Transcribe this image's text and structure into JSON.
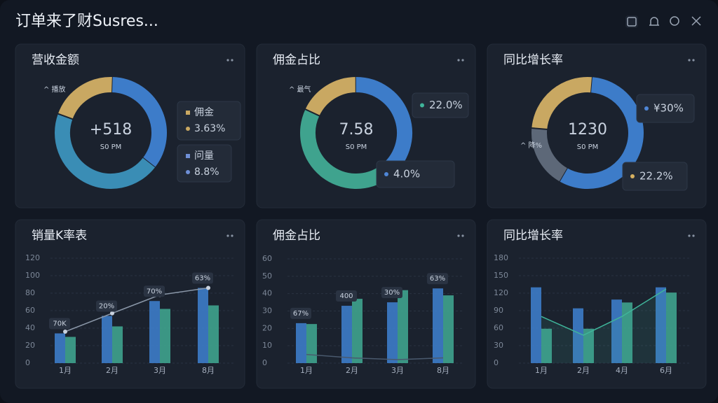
{
  "header": {
    "title": "订单来了财Susres..."
  },
  "donuts": [
    {
      "title": "营收金额",
      "center": "+518",
      "sub": "S0 PM",
      "label": "^ 播放",
      "segments": [
        {
          "color": "#c9a862",
          "value": 20
        },
        {
          "color": "#3d7cc9",
          "value": 35
        },
        {
          "color": "#3a8db5",
          "value": 45
        }
      ],
      "callouts": [
        {
          "name": "佣金",
          "text": "3.63%",
          "color": "#c9a862"
        },
        {
          "name": "问量",
          "text": "8.8%",
          "color": "#6f8fd6"
        }
      ]
    },
    {
      "title": "佣金占比",
      "center": "7.58",
      "sub": "S0 PM",
      "label": "^ 最气",
      "segments": [
        {
          "color": "#c9a862",
          "value": 18
        },
        {
          "color": "#3d7cc9",
          "value": 40
        },
        {
          "color": "#3fa38e",
          "value": 42
        }
      ],
      "callouts": [
        {
          "text": "22.0%",
          "color": "#3fb59a"
        },
        {
          "text": "4.0%",
          "color": "#4f86d6"
        }
      ]
    },
    {
      "title": "同比增长率",
      "center": "1230",
      "sub": "S0 PM",
      "label": "^ 降%",
      "segments": [
        {
          "color": "#c9a862",
          "value": 25
        },
        {
          "color": "#3d7cc9",
          "value": 57
        },
        {
          "color": "#5d6878",
          "value": 18
        }
      ],
      "callouts": [
        {
          "text": "¥30%",
          "color": "#4f86d6"
        },
        {
          "text": "22.2%",
          "color": "#d6b060"
        }
      ]
    }
  ],
  "bars": [
    {
      "title": "销量K率表",
      "categories": [
        "1月",
        "2月",
        "3月",
        "8月"
      ],
      "ylim": [
        0,
        120
      ],
      "yticks": [
        0,
        20,
        40,
        60,
        80,
        100,
        120
      ],
      "series": [
        {
          "color": "#3d7cc9",
          "values": [
            34,
            54,
            71,
            86
          ]
        },
        {
          "color": "#3fa38e",
          "values": [
            30,
            42,
            62,
            66
          ]
        }
      ],
      "line": {
        "color": "#8a97a8",
        "values": [
          36,
          57,
          78,
          86
        ]
      },
      "annotations": [
        "70K",
        "20%",
        "70%",
        "63%"
      ]
    },
    {
      "title": "佣金占比",
      "categories": [
        "1月",
        "2月",
        "3月",
        "8月"
      ],
      "ylim": [
        0,
        60
      ],
      "yticks": [
        0,
        10,
        20,
        30,
        40,
        50,
        60
      ],
      "series": [
        {
          "color": "#3d7cc9",
          "values": [
            23,
            33,
            35,
            43
          ]
        },
        {
          "color": "#3fa38e",
          "values": [
            22.5,
            37,
            42,
            39
          ]
        }
      ],
      "line": {
        "color": "#4a5a6e",
        "values": [
          5,
          3,
          2,
          3
        ]
      },
      "annotations": [
        "67%",
        "400",
        "30%",
        "63%"
      ]
    },
    {
      "title": "同比增长率",
      "categories": [
        "1月",
        "2月",
        "4月",
        "6月"
      ],
      "ylim": [
        0,
        180
      ],
      "yticks": [
        0,
        30,
        60,
        90,
        120,
        150,
        180
      ],
      "series": [
        {
          "color": "#3d7cc9",
          "values": [
            130,
            94,
            109,
            130
          ]
        },
        {
          "color": "#3fa38e",
          "values": [
            59,
            59,
            104,
            121
          ]
        }
      ],
      "line": {
        "color": "#3fb59a",
        "values": [
          80,
          48,
          80,
          127
        ]
      },
      "annotations": []
    }
  ]
}
